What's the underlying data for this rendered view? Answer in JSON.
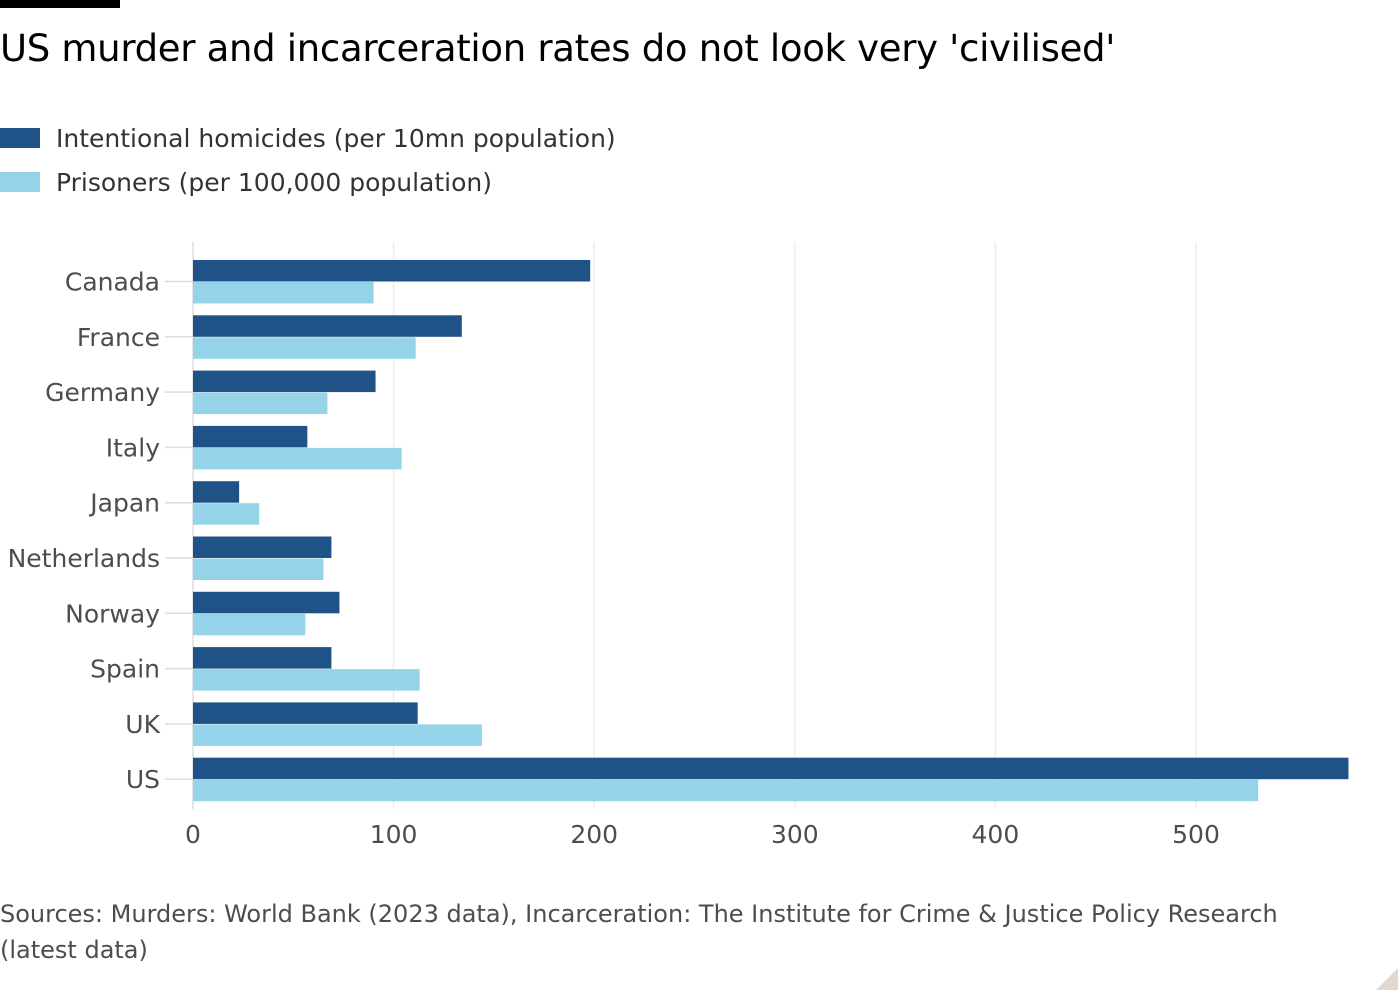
{
  "title": "US murder and incarceration rates do not look very 'civilised'",
  "legend": [
    {
      "label": "Intentional homicides (per 10mn population)",
      "color": "#1f5287"
    },
    {
      "label": "Prisoners (per 100,000 population)",
      "color": "#95d4e8"
    }
  ],
  "source": "Sources: Murders: World Bank (2023 data), Incarceration: The Institute for Crime & Justice Policy Research (latest data)",
  "chart_data": {
    "type": "bar",
    "orientation": "horizontal",
    "categories": [
      "Canada",
      "France",
      "Germany",
      "Italy",
      "Japan",
      "Netherlands",
      "Norway",
      "Spain",
      "UK",
      "US"
    ],
    "series": [
      {
        "name": "Intentional homicides (per 10mn population)",
        "color": "#1f5287",
        "values": [
          198,
          134,
          91,
          57,
          23,
          69,
          73,
          69,
          112,
          576
        ]
      },
      {
        "name": "Prisoners (per 100,000 population)",
        "color": "#95d4e8",
        "values": [
          90,
          111,
          67,
          104,
          33,
          65,
          56,
          113,
          144,
          531
        ]
      }
    ],
    "xlim": [
      0,
      580
    ],
    "xticks": [
      0,
      100,
      200,
      300,
      400,
      500
    ],
    "grid": true,
    "title": "US murder and incarceration rates do not look very 'civilised'",
    "legend_position": "top-left"
  }
}
